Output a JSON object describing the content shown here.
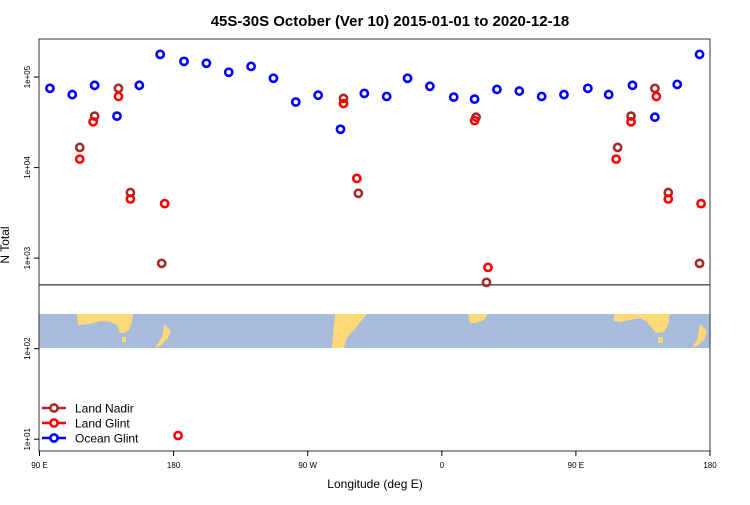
{
  "chart_data": {
    "type": "scatter",
    "title": "45S-30S October (Ver 10)   2015-01-01 to 2020-12-18",
    "xlabel": "Longitude (deg E)",
    "ylabel": "N Total",
    "xlim": [
      90,
      540
    ],
    "ylim_log10": [
      0.87,
      5.42
    ],
    "y_scale": "log",
    "x_ticks": [
      {
        "value": 90,
        "label": "90 E"
      },
      {
        "value": 180,
        "label": "180"
      },
      {
        "value": 270,
        "label": "90 W"
      },
      {
        "value": 360,
        "label": "0"
      },
      {
        "value": 450,
        "label": "90 E"
      },
      {
        "value": 540,
        "label": "180"
      }
    ],
    "y_ticks": [
      {
        "value": 10,
        "label": "1e+01"
      },
      {
        "value": 100,
        "label": "1e+02"
      },
      {
        "value": 1000,
        "label": "1e+03"
      },
      {
        "value": 10000,
        "label": "1e+04"
      },
      {
        "value": 100000,
        "label": "1e+05"
      }
    ],
    "reference_line_value": 507,
    "map_band_range": [
      100,
      235
    ],
    "legend_position": "bottom-left",
    "series": [
      {
        "name": "Land Nadir",
        "color": "#a52a2a",
        "x": [
          117,
          127,
          143,
          151,
          172,
          294,
          304,
          383,
          390,
          478,
          487,
          503,
          512,
          533
        ],
        "y": [
          16700,
          37000,
          75000,
          5300,
          875,
          58000,
          5200,
          36000,
          540,
          16700,
          37000,
          75000,
          5300,
          875
        ]
      },
      {
        "name": "Land Glint",
        "color": "#ff0000",
        "x": [
          117,
          126,
          143,
          151,
          174,
          183,
          294,
          303,
          382,
          391,
          477,
          487,
          504,
          512,
          534
        ],
        "y": [
          12400,
          32000,
          61000,
          4500,
          4000,
          11,
          51000,
          7600,
          33000,
          790,
          12400,
          32000,
          61000,
          4500,
          4000
        ]
      },
      {
        "name": "Ocean Glint",
        "color": "#0000ff",
        "x": [
          97,
          112,
          127,
          142,
          157,
          171,
          187,
          202,
          217,
          232,
          247,
          262,
          277,
          292,
          308,
          323,
          337,
          352,
          368,
          382,
          397,
          412,
          427,
          442,
          458,
          472,
          488,
          503,
          518,
          533
        ],
        "y": [
          75000,
          64000,
          81000,
          37000,
          81000,
          178000,
          149000,
          142000,
          113000,
          131000,
          97000,
          53000,
          63000,
          26500,
          66000,
          61000,
          97000,
          79000,
          60000,
          57000,
          73000,
          70000,
          61000,
          64000,
          75000,
          64000,
          81000,
          36000,
          83000,
          178000
        ]
      }
    ]
  }
}
